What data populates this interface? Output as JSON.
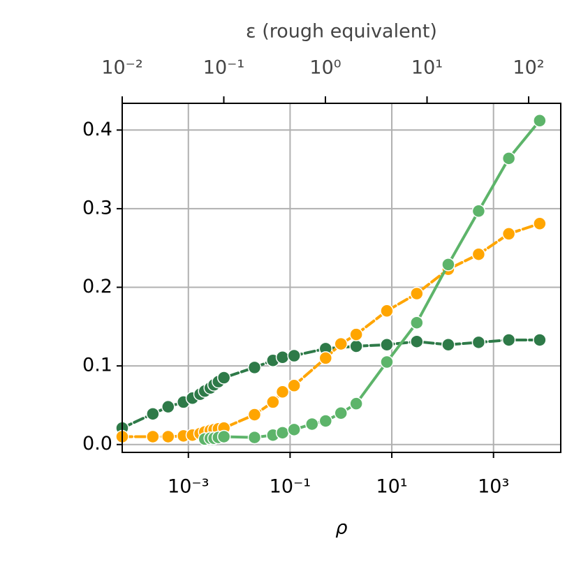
{
  "chart_data": {
    "type": "line",
    "xlabel": "ρ",
    "x2label": "ε (rough equivalent)",
    "xscale": "log",
    "x2scale": "log",
    "grid": true,
    "xlim": [
      5e-05,
      21000
    ],
    "xticks": [
      {
        "value": 0.001,
        "label": "10⁻³"
      },
      {
        "value": 0.1,
        "label": "10⁻¹"
      },
      {
        "value": 10,
        "label": "10¹"
      },
      {
        "value": 1000,
        "label": "10³"
      }
    ],
    "x2lim": [
      0.01,
      207
    ],
    "x2ticks": [
      {
        "value": 0.01,
        "label": "10⁻²"
      },
      {
        "value": 0.1,
        "label": "10⁻¹"
      },
      {
        "value": 1,
        "label": "10⁰"
      },
      {
        "value": 10,
        "label": "10¹"
      },
      {
        "value": 100,
        "label": "10²"
      }
    ],
    "ylim": [
      -0.01,
      0.434
    ],
    "yticks": [
      {
        "value": 0,
        "label": "0.0"
      },
      0.1,
      0.2,
      0.3,
      0.4
    ],
    "series": [
      {
        "color": "#2e7a48",
        "linestyle": "dashed",
        "x": [
          5e-05,
          0.0002,
          0.0004,
          0.0008,
          0.0012,
          0.0017,
          0.0021,
          0.0027,
          0.0032,
          0.0039,
          0.005,
          0.02,
          0.046,
          0.071,
          0.12,
          0.5,
          2,
          8,
          31,
          129,
          510,
          2000,
          8100
        ],
        "values": [
          0.021,
          0.039,
          0.048,
          0.054,
          0.059,
          0.064,
          0.068,
          0.072,
          0.076,
          0.08,
          0.085,
          0.098,
          0.107,
          0.111,
          0.113,
          0.122,
          0.125,
          0.127,
          0.131,
          0.127,
          0.13,
          0.133,
          0.133
        ]
      },
      {
        "color": "#ffa500",
        "linestyle": "dashed",
        "x": [
          5e-05,
          0.0002,
          0.0004,
          0.0008,
          0.0012,
          0.0017,
          0.0021,
          0.0027,
          0.0032,
          0.0039,
          0.005,
          0.02,
          0.046,
          0.071,
          0.12,
          0.5,
          1,
          2,
          8,
          31,
          129,
          510,
          2000,
          8100
        ],
        "values": [
          0.01,
          0.01,
          0.01,
          0.011,
          0.012,
          0.014,
          0.016,
          0.018,
          0.019,
          0.02,
          0.021,
          0.038,
          0.054,
          0.067,
          0.075,
          0.11,
          0.128,
          0.14,
          0.17,
          0.192,
          0.223,
          0.242,
          0.268,
          0.281
        ]
      },
      {
        "color": "#5db46a",
        "linestyle": "solid",
        "x": [
          0.0021,
          0.0027,
          0.0032,
          0.0039,
          0.005,
          0.02,
          0.046,
          0.071,
          0.12,
          0.27,
          0.5,
          1,
          2,
          8,
          31,
          129,
          510,
          2000,
          8100
        ],
        "values": [
          0.007,
          0.008,
          0.008,
          0.009,
          0.01,
          0.009,
          0.012,
          0.015,
          0.019,
          0.026,
          0.03,
          0.04,
          0.052,
          0.105,
          0.155,
          0.229,
          0.297,
          0.364,
          0.412
        ]
      }
    ]
  }
}
